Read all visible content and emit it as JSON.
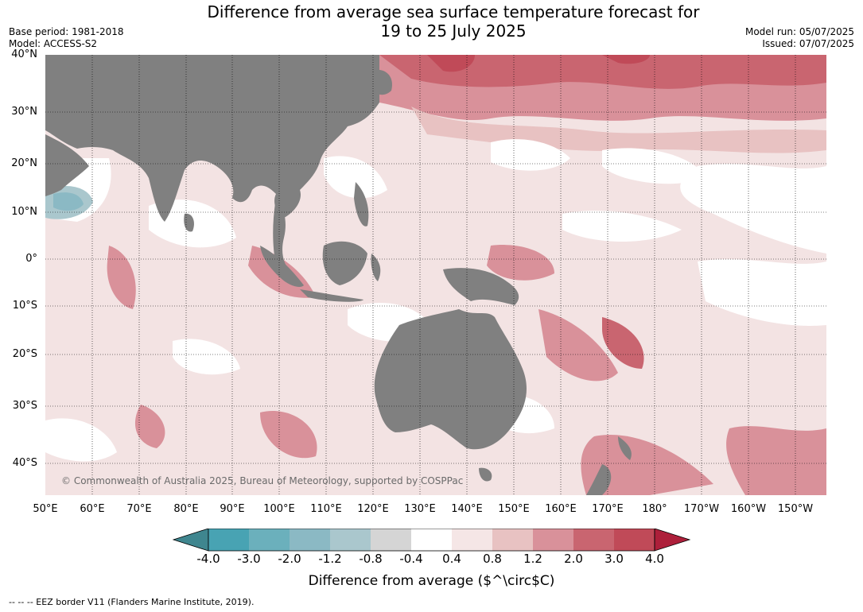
{
  "title_line1": "Difference from average sea surface temperature forecast for",
  "title_line2": "19 to 25 July 2025",
  "base_period": "Base period: 1981-2018",
  "model": "Model: ACCESS-S2",
  "model_run": "Model run: 05/07/2025",
  "issued": "Issued: 07/07/2025",
  "copyright": "© Commonwealth of Australia 2025, Bureau of Meteorology, supported by COSPPac",
  "lat_labels": [
    "40°N",
    "30°N",
    "20°N",
    "10°N",
    "0°",
    "10°S",
    "20°S",
    "30°S",
    "40°S"
  ],
  "lon_labels": [
    "50°E",
    "60°E",
    "70°E",
    "80°E",
    "90°E",
    "100°E",
    "110°E",
    "120°E",
    "130°E",
    "140°E",
    "150°E",
    "160°E",
    "170°E",
    "180°",
    "170°W",
    "160°W",
    "150°W"
  ],
  "colorbar": {
    "title": "Difference from average ($^\\circ$C)",
    "ticks": [
      "-4.0",
      "-3.0",
      "-2.0",
      "-1.2",
      "-0.8",
      "-0.4",
      "0.4",
      "0.8",
      "1.2",
      "2.0",
      "3.0",
      "4.0"
    ],
    "colors": [
      "#3f868f",
      "#48a3b3",
      "#6bb0bc",
      "#8bb9c4",
      "#aac7cd",
      "#d5d5d5",
      "#ffffff",
      "#f5e6e6",
      "#e8c2c2",
      "#d9919a",
      "#c96570",
      "#c04a58",
      "#ad1f3a"
    ]
  },
  "land_color": "#808080",
  "footnote": "--  --  -- EEZ border V11 (Flanders Marine Institute, 2019)."
}
